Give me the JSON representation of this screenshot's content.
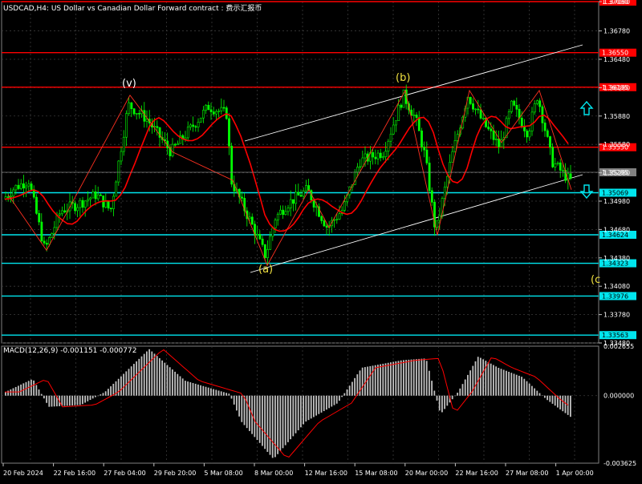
{
  "chart_data": [
    {
      "type": "candlestick",
      "title": "USDCAD,H4: US Dollar vs Canadian Dollar Forward contract : 费示汇报币",
      "current_price": 1.35285,
      "ylim": [
        1.3348,
        1.3709
      ],
      "y_ticks": [
        "1.37090",
        "1.36780",
        "1.36480",
        "1.36180",
        "1.35880",
        "1.35580",
        "1.35280",
        "1.34980",
        "1.34680",
        "1.34380",
        "1.34080",
        "1.33780",
        "1.33480"
      ],
      "x_ticks": [
        "20 Feb 2024",
        "22 Feb 16:00",
        "27 Feb 04:00",
        "29 Feb 20:00",
        "5 Mar 08:00",
        "8 Mar 00:00",
        "12 Mar 16:00",
        "15 Mar 08:00",
        "20 Mar 00:00",
        "22 Mar 16:00",
        "27 Mar 08:00",
        "1 Apr 00:00"
      ],
      "resistance_lines": [
        {
          "value": 1.3709,
          "label": "1.37090"
        },
        {
          "value": 1.3655,
          "label": "1.36550"
        },
        {
          "value": 1.36185,
          "label": "1.36185"
        },
        {
          "value": 1.3555,
          "label": "1.35550"
        }
      ],
      "support_lines": [
        {
          "value": 1.35069,
          "label": "1.35069"
        },
        {
          "value": 1.34624,
          "label": "1.34624"
        },
        {
          "value": 1.34323,
          "label": "1.34323"
        },
        {
          "value": 1.33976,
          "label": "1.33976"
        },
        {
          "value": 1.33563,
          "label": "1.33563"
        }
      ],
      "wave_labels": [
        "(v)",
        "(b)",
        "(a)",
        "(c"
      ],
      "colors": {
        "candle": "#00ff00",
        "ma": "#ff0000",
        "resistance": "#ff0000",
        "support": "#00e5ee",
        "channel": "#ffffff",
        "wave": "#f0e040"
      }
    },
    {
      "type": "bar",
      "title": "MACD(12,26,9) -0.001151 -0.000772",
      "ylim": [
        -0.003625,
        0.002655
      ],
      "y_ticks": [
        "0.002655",
        "0.000000",
        "-0.003625"
      ],
      "colors": {
        "histogram": "#c0c0c0",
        "signal": "#ff0000"
      }
    }
  ]
}
